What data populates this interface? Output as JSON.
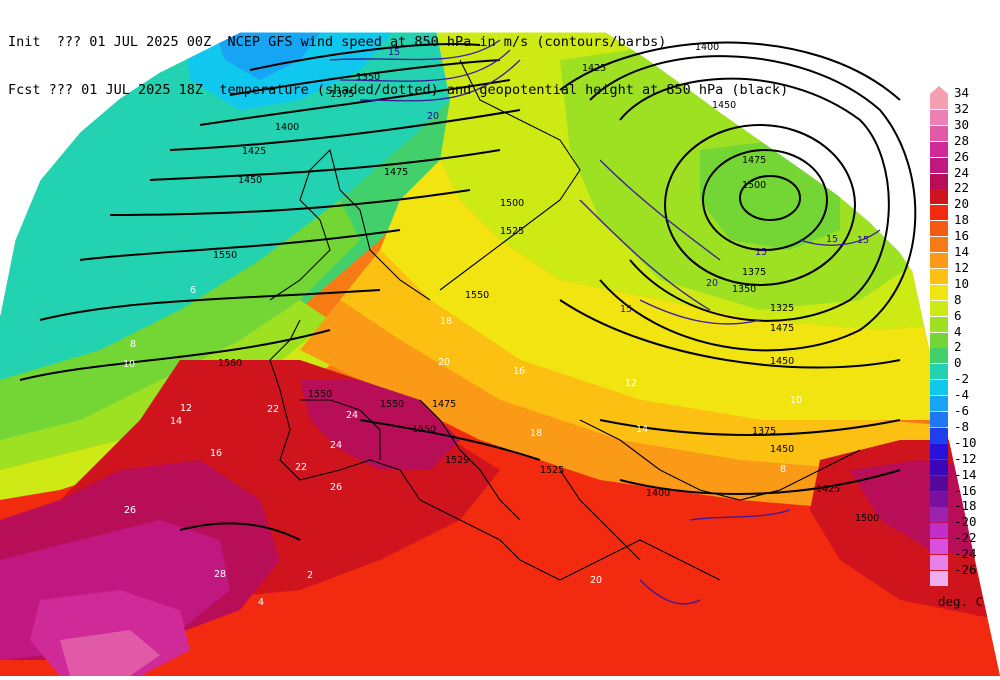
{
  "header": {
    "line1_left": "Init  ??? 01 JUL 2025 00Z",
    "line1_right": "NCEP GFS wind speed at 850 hPa in m/s (contours/barbs)",
    "line2_left": "Fcst ??? 01 JUL 2025 18Z",
    "line2_right": "temperature (shaded/dotted) and geopotential height at 850 hPa (black)"
  },
  "colorbar": {
    "unit": "deg. C",
    "levels": [
      {
        "label": "34",
        "color": "#f4a0b0"
      },
      {
        "label": "32",
        "color": "#ee7fb4"
      },
      {
        "label": "30",
        "color": "#e05aa8"
      },
      {
        "label": "28",
        "color": "#d02a98"
      },
      {
        "label": "26",
        "color": "#c01880"
      },
      {
        "label": "24",
        "color": "#b80e58"
      },
      {
        "label": "22",
        "color": "#d0141e"
      },
      {
        "label": "20",
        "color": "#f22a10"
      },
      {
        "label": "18",
        "color": "#f45a10"
      },
      {
        "label": "16",
        "color": "#f77b14"
      },
      {
        "label": "14",
        "color": "#fa9a16"
      },
      {
        "label": "12",
        "color": "#fbc012"
      },
      {
        "label": "10",
        "color": "#f2e410"
      },
      {
        "label": "8",
        "color": "#cdea14"
      },
      {
        "label": "6",
        "color": "#9ee022"
      },
      {
        "label": "4",
        "color": "#74d634"
      },
      {
        "label": "2",
        "color": "#42d06c"
      },
      {
        "label": "0",
        "color": "#22d2b0"
      },
      {
        "label": "-2",
        "color": "#10c8ee"
      },
      {
        "label": "-4",
        "color": "#16a4f4"
      },
      {
        "label": "-6",
        "color": "#1e78f4"
      },
      {
        "label": "-8",
        "color": "#1e3ef0"
      },
      {
        "label": "-10",
        "color": "#2612d8"
      },
      {
        "label": "-12",
        "color": "#3a06b8"
      },
      {
        "label": "-14",
        "color": "#56089a"
      },
      {
        "label": "-16",
        "color": "#7a10a0"
      },
      {
        "label": "-18",
        "color": "#9c22b0"
      },
      {
        "label": "-20",
        "color": "#c030c8"
      },
      {
        "label": "-22",
        "color": "#da50de"
      },
      {
        "label": "-24",
        "color": "#e680ea"
      },
      {
        "label": "-26",
        "color": "#f0aef2"
      }
    ]
  },
  "map": {
    "height_labels": [
      "1350",
      "1375",
      "1400",
      "1425",
      "1450",
      "1475",
      "1500",
      "1525",
      "1550",
      "1560",
      "1550",
      "1550",
      "1550",
      "1550",
      "1529",
      "1525",
      "1500",
      "1475",
      "1450",
      "1425",
      "1400",
      "1375",
      "1350",
      "1325",
      "1375",
      "1450",
      "1425",
      "1400",
      "1500",
      "1475",
      "1450",
      "1475"
    ],
    "temp_labels": [
      "6",
      "8",
      "10",
      "12",
      "14",
      "16",
      "18",
      "20",
      "22",
      "24",
      "26",
      "28",
      "2",
      "4",
      "20",
      "18",
      "16",
      "14",
      "12",
      "10",
      "8",
      "26",
      "22",
      "24"
    ],
    "wind_labels": [
      "15",
      "20",
      "15",
      "15",
      "20",
      "15",
      "15"
    ]
  }
}
